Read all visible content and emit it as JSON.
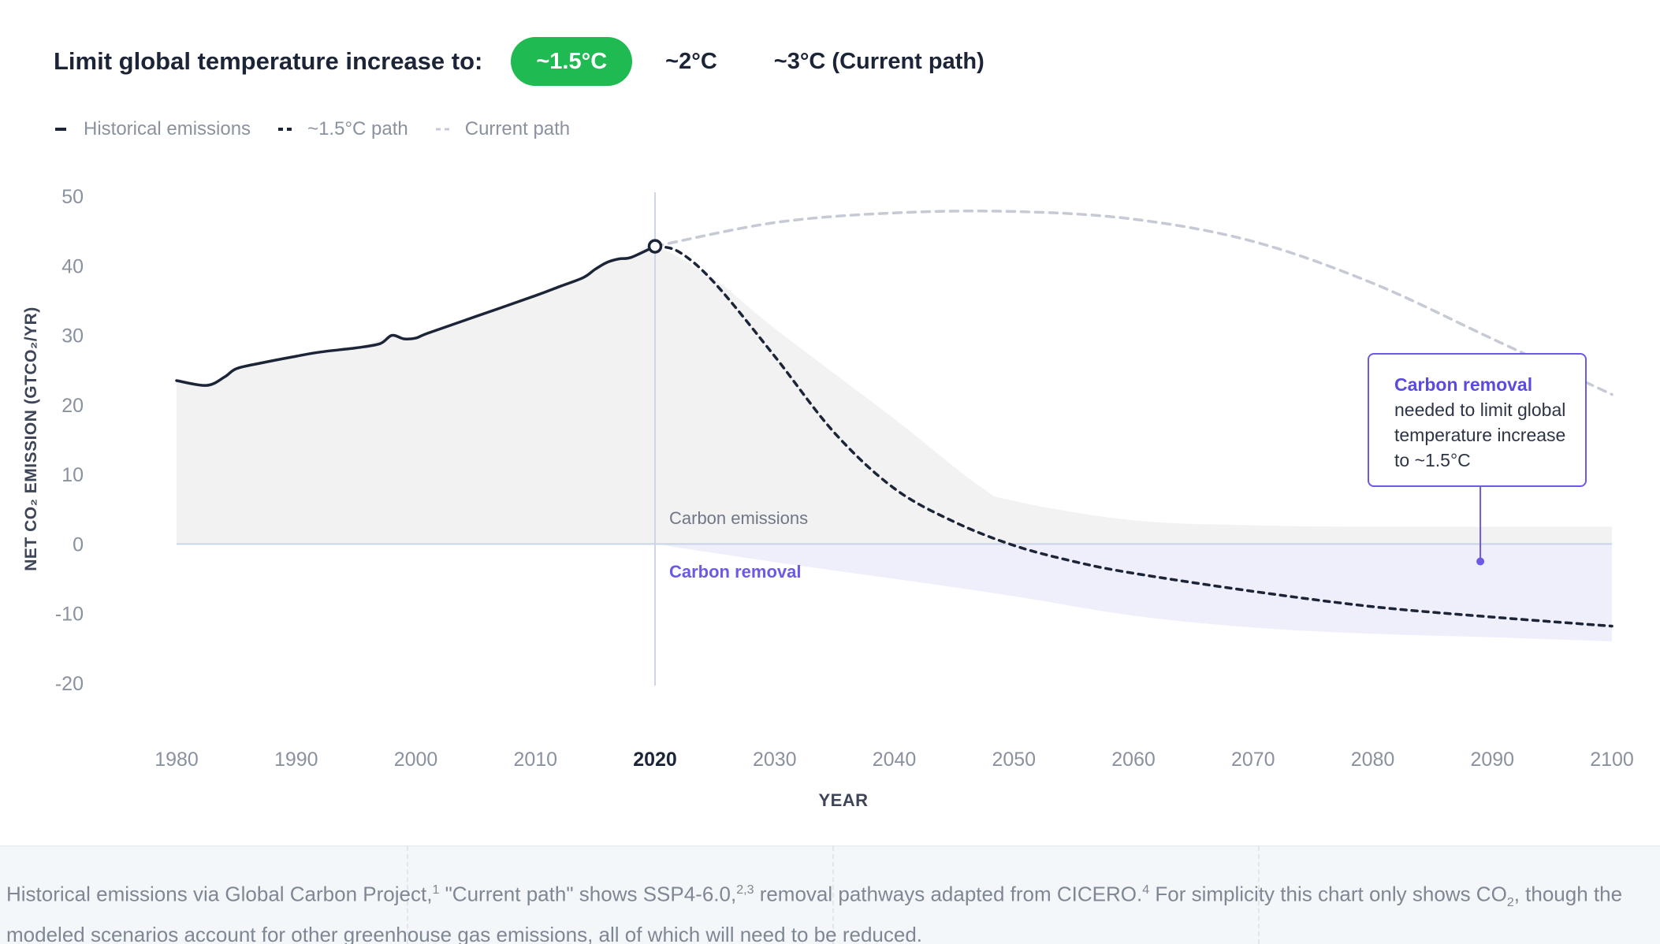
{
  "controls": {
    "label": "Limit global temperature increase to:",
    "options": [
      "~1.5°C",
      "~2°C",
      "~3°C (Current path)"
    ],
    "selected": "~1.5°C"
  },
  "legend": {
    "items": [
      {
        "label": "Historical emissions",
        "style": "solid",
        "color": "#1c2438"
      },
      {
        "label": "~1.5°C path",
        "style": "dashed",
        "color": "#1c2438"
      },
      {
        "label": "Current path",
        "style": "dashed",
        "color": "#c6cad4"
      }
    ]
  },
  "chart_data": {
    "type": "line",
    "xlabel": "YEAR",
    "ylabel": "NET CO₂ EMISSION (GTCO₂/YR)",
    "xlim": [
      1980,
      2100
    ],
    "ylim": [
      -20,
      50
    ],
    "xticks": [
      1980,
      1990,
      2000,
      2010,
      2020,
      2030,
      2040,
      2050,
      2060,
      2070,
      2080,
      2090,
      2100
    ],
    "yticks": [
      50,
      40,
      30,
      20,
      10,
      0,
      -10,
      -20
    ],
    "highlight_x": 2020,
    "series": [
      {
        "name": "Historical emissions",
        "style": "solid",
        "points": [
          [
            1980,
            23.5
          ],
          [
            1982.5,
            22.8
          ],
          [
            1984,
            24
          ],
          [
            1985,
            25.2
          ],
          [
            1987,
            26
          ],
          [
            1990,
            27
          ],
          [
            1992,
            27.6
          ],
          [
            1995,
            28.2
          ],
          [
            1997,
            28.8
          ],
          [
            1998,
            30
          ],
          [
            1999,
            29.5
          ],
          [
            2000,
            29.6
          ],
          [
            2001,
            30.3
          ],
          [
            2005,
            32.7
          ],
          [
            2010,
            35.7
          ],
          [
            2012,
            37
          ],
          [
            2014,
            38.3
          ],
          [
            2015,
            39.5
          ],
          [
            2016,
            40.5
          ],
          [
            2017,
            41
          ],
          [
            2018,
            41.2
          ],
          [
            2020,
            42.8
          ]
        ]
      },
      {
        "name": "~1.5°C path",
        "style": "dashed",
        "points": [
          [
            2020,
            42.8
          ],
          [
            2022,
            42
          ],
          [
            2025,
            37.5
          ],
          [
            2030,
            27
          ],
          [
            2035,
            16
          ],
          [
            2040,
            8
          ],
          [
            2045,
            3.2
          ],
          [
            2050,
            -0.2
          ],
          [
            2055,
            -2.5
          ],
          [
            2060,
            -4.2
          ],
          [
            2070,
            -6.8
          ],
          [
            2080,
            -9
          ],
          [
            2090,
            -10.5
          ],
          [
            2100,
            -11.8
          ]
        ]
      },
      {
        "name": "Current path",
        "style": "dashed",
        "points": [
          [
            2020,
            42.8
          ],
          [
            2030,
            46.2
          ],
          [
            2040,
            47.6
          ],
          [
            2050,
            47.8
          ],
          [
            2060,
            46.7
          ],
          [
            2070,
            43.5
          ],
          [
            2080,
            37.5
          ],
          [
            2090,
            29.5
          ],
          [
            2100,
            21.5
          ]
        ]
      }
    ],
    "areas": [
      {
        "name": "Carbon emissions",
        "points": [
          [
            1980,
            23.5
          ],
          [
            1982.5,
            22.8
          ],
          [
            1984,
            24
          ],
          [
            1985,
            25.2
          ],
          [
            1990,
            27
          ],
          [
            1995,
            28.2
          ],
          [
            1998,
            30
          ],
          [
            2000,
            29.6
          ],
          [
            2005,
            32.7
          ],
          [
            2010,
            35.7
          ],
          [
            2014,
            38.3
          ],
          [
            2016,
            40.5
          ],
          [
            2018,
            41.2
          ],
          [
            2020,
            42.8
          ],
          [
            2025,
            38
          ],
          [
            2030,
            31
          ],
          [
            2040,
            18
          ],
          [
            2047,
            8.5
          ],
          [
            2050,
            6.2
          ],
          [
            2060,
            3.4
          ],
          [
            2070,
            2.7
          ],
          [
            2080,
            2.5
          ],
          [
            2100,
            2.5
          ]
        ]
      },
      {
        "name": "Carbon removal",
        "points": [
          [
            2020,
            0
          ],
          [
            2030,
            -2.6
          ],
          [
            2040,
            -5
          ],
          [
            2050,
            -7.5
          ],
          [
            2060,
            -10.3
          ],
          [
            2070,
            -12
          ],
          [
            2080,
            -12.9
          ],
          [
            2090,
            -13.4
          ],
          [
            2100,
            -14
          ]
        ]
      }
    ],
    "area_labels": [
      "Carbon emissions",
      "Carbon removal"
    ],
    "callout": {
      "title": "Carbon removal",
      "body": "needed to limit global temperature increase to ~1.5°C",
      "x": 2089,
      "y": -2.5
    },
    "colors": {
      "historical": "#1c2438",
      "path_1_5": "#1c2438",
      "current": "#c6cad4",
      "emissions_fill": "#f2f2f2",
      "removal_fill": "#efeffc",
      "removal_accent": "#6a5ae6",
      "axis_text": "#8a919f"
    }
  },
  "footer": {
    "text_parts": [
      "Historical emissions via Global Carbon Project,",
      "1",
      " \"Current path\" shows SSP4-6.0,",
      "2,3",
      " removal pathways adapted from CICERO.",
      "4",
      " For simplicity this chart only shows CO",
      "2",
      ", though the modeled scenarios account for other greenhouse gas emissions, all of which will need to be reduced."
    ]
  }
}
